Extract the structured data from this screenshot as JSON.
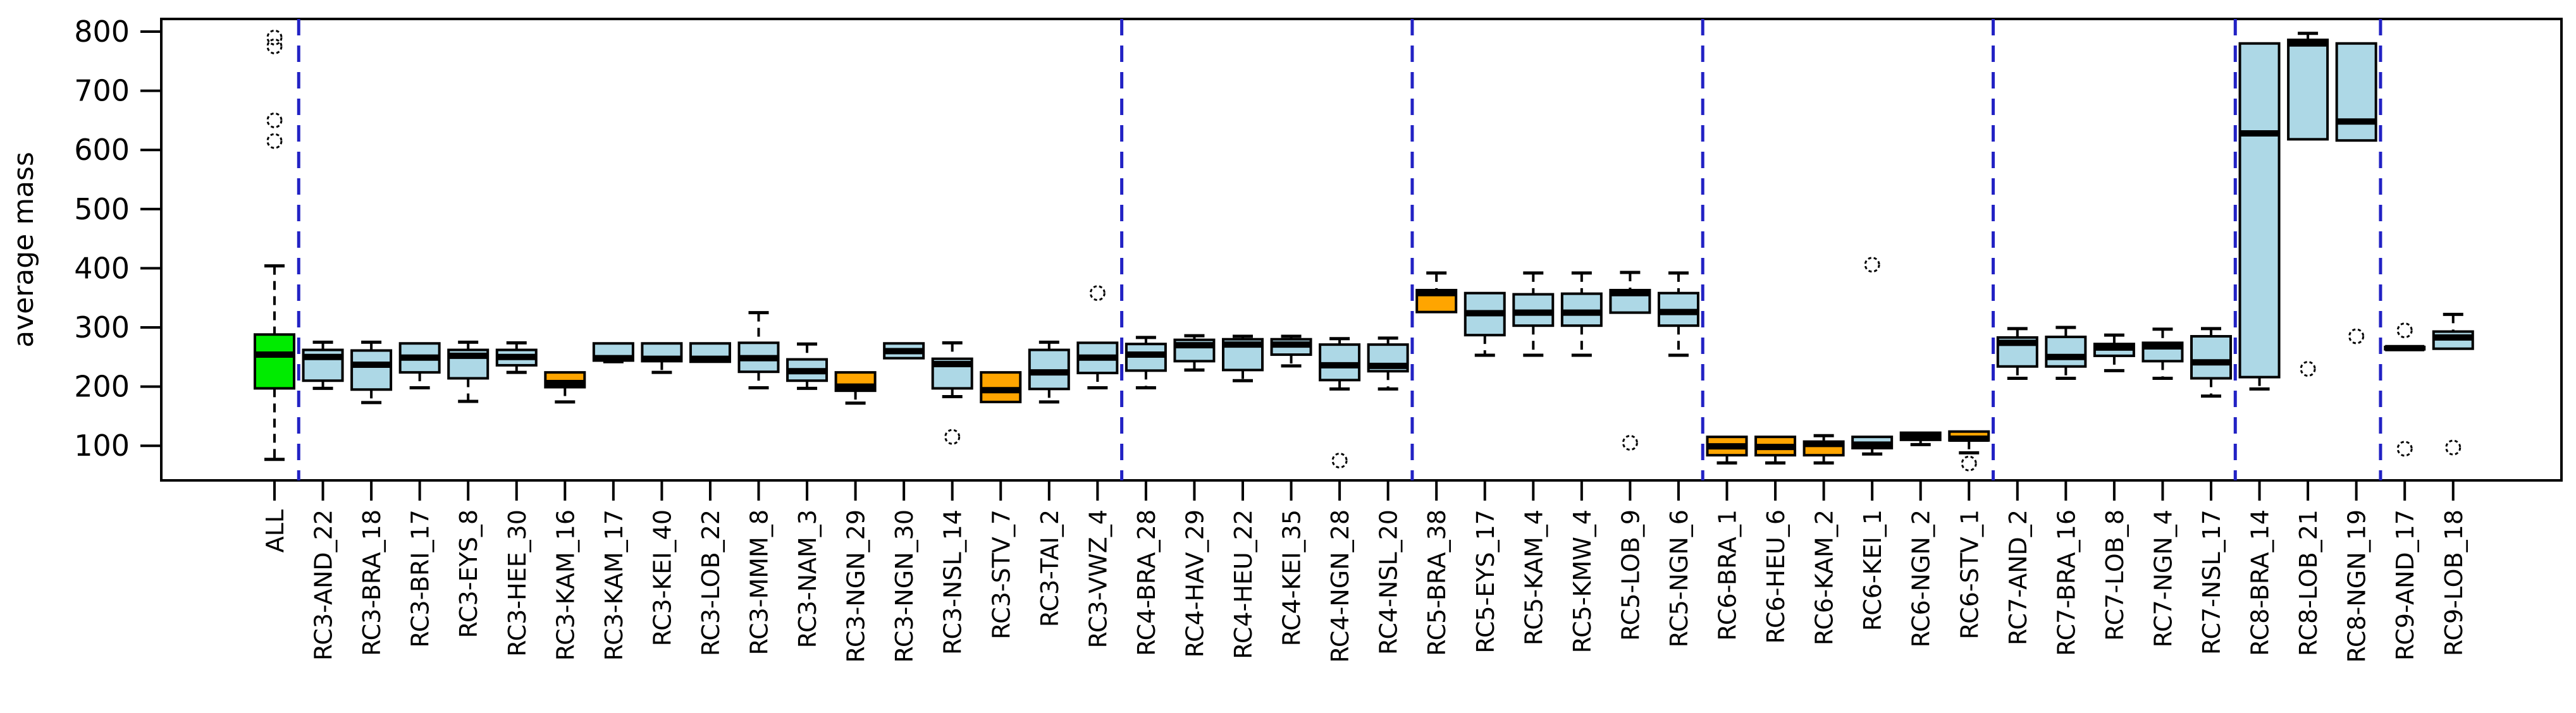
{
  "chart_data": {
    "type": "boxplot",
    "title": "",
    "xlabel": "",
    "ylabel": "average mass",
    "ylim": [
      40,
      825
    ],
    "yticks": [
      100,
      200,
      300,
      400,
      500,
      600,
      700,
      800
    ],
    "grid": false,
    "legend": null,
    "colors": {
      "highlight_green": "#00EB00",
      "default_lightblue": "#ADD8E6",
      "highlight_orange": "#FFA500",
      "separator_blue": "#2222C4",
      "axis_black": "#000000",
      "background": "#FFFFFF"
    },
    "separators_after_labels": [
      "ALL",
      "RC3-VWZ_4",
      "RC4-NSL_20",
      "RC5-NGN_6",
      "RC6-STV_1",
      "RC7-NSL_17",
      "RC8-NGN_19"
    ],
    "boxes": [
      {
        "label": "ALL",
        "color": "green",
        "lo": 77,
        "q1": 197,
        "med": 254,
        "q3": 288,
        "hi": 404,
        "outliers": [
          615,
          650,
          775,
          790
        ]
      },
      {
        "label": "RC3-AND_22",
        "color": "lightblue",
        "lo": 197,
        "q1": 210,
        "med": 250,
        "q3": 262,
        "hi": 275,
        "outliers": []
      },
      {
        "label": "RC3-BRA_18",
        "color": "lightblue",
        "lo": 173,
        "q1": 195,
        "med": 237,
        "q3": 261,
        "hi": 275,
        "outliers": []
      },
      {
        "label": "RC3-BRI_17",
        "color": "lightblue",
        "lo": 198,
        "q1": 224,
        "med": 249,
        "q3": 273,
        "hi": 273,
        "outliers": []
      },
      {
        "label": "RC3-EYS_8",
        "color": "lightblue",
        "lo": 175,
        "q1": 214,
        "med": 252,
        "q3": 262,
        "hi": 275,
        "outliers": []
      },
      {
        "label": "RC3-HEE_30",
        "color": "lightblue",
        "lo": 224,
        "q1": 236,
        "med": 250,
        "q3": 262,
        "hi": 274,
        "outliers": []
      },
      {
        "label": "RC3-KAM_16",
        "color": "orange",
        "lo": 174,
        "q1": 199,
        "med": 206,
        "q3": 224,
        "hi": 224,
        "outliers": []
      },
      {
        "label": "RC3-KAM_17",
        "color": "lightblue",
        "lo": 242,
        "q1": 244,
        "med": 248,
        "q3": 273,
        "hi": 273,
        "outliers": []
      },
      {
        "label": "RC3-KEI_40",
        "color": "lightblue",
        "lo": 224,
        "q1": 243,
        "med": 247,
        "q3": 273,
        "hi": 273,
        "outliers": []
      },
      {
        "label": "RC3-LOB_22",
        "color": "lightblue",
        "lo": 241,
        "q1": 242,
        "med": 247,
        "q3": 273,
        "hi": 273,
        "outliers": []
      },
      {
        "label": "RC3-MMM_8",
        "color": "lightblue",
        "lo": 198,
        "q1": 225,
        "med": 248,
        "q3": 274,
        "hi": 325,
        "outliers": []
      },
      {
        "label": "RC3-NAM_3",
        "color": "lightblue",
        "lo": 197,
        "q1": 210,
        "med": 226,
        "q3": 246,
        "hi": 272,
        "outliers": []
      },
      {
        "label": "RC3-NGN_29",
        "color": "orange",
        "lo": 172,
        "q1": 193,
        "med": 200,
        "q3": 224,
        "hi": 224,
        "outliers": []
      },
      {
        "label": "RC3-NGN_30",
        "color": "lightblue",
        "lo": 247,
        "q1": 248,
        "med": 260,
        "q3": 273,
        "hi": 273,
        "outliers": []
      },
      {
        "label": "RC3-NSL_14",
        "color": "lightblue",
        "lo": 183,
        "q1": 197,
        "med": 238,
        "q3": 247,
        "hi": 274,
        "outliers": [
          115
        ]
      },
      {
        "label": "RC3-STV_7",
        "color": "orange",
        "lo": 173,
        "q1": 174,
        "med": 194,
        "q3": 224,
        "hi": 224,
        "outliers": []
      },
      {
        "label": "RC3-TAI_2",
        "color": "lightblue",
        "lo": 174,
        "q1": 196,
        "med": 224,
        "q3": 262,
        "hi": 275,
        "outliers": []
      },
      {
        "label": "RC3-VWZ_4",
        "color": "lightblue",
        "lo": 198,
        "q1": 223,
        "med": 249,
        "q3": 274,
        "hi": 274,
        "outliers": [
          358
        ]
      },
      {
        "label": "RC4-BRA_28",
        "color": "lightblue",
        "lo": 198,
        "q1": 227,
        "med": 254,
        "q3": 272,
        "hi": 283,
        "outliers": []
      },
      {
        "label": "RC4-HAV_29",
        "color": "lightblue",
        "lo": 228,
        "q1": 243,
        "med": 270,
        "q3": 279,
        "hi": 286,
        "outliers": []
      },
      {
        "label": "RC4-HEU_22",
        "color": "lightblue",
        "lo": 210,
        "q1": 228,
        "med": 271,
        "q3": 280,
        "hi": 285,
        "outliers": []
      },
      {
        "label": "RC4-KEI_35",
        "color": "lightblue",
        "lo": 235,
        "q1": 254,
        "med": 271,
        "q3": 280,
        "hi": 285,
        "outliers": []
      },
      {
        "label": "RC4-NGN_28",
        "color": "lightblue",
        "lo": 196,
        "q1": 211,
        "med": 236,
        "q3": 271,
        "hi": 281,
        "outliers": [
          75
        ]
      },
      {
        "label": "RC4-NSL_20",
        "color": "lightblue",
        "lo": 196,
        "q1": 226,
        "med": 235,
        "q3": 271,
        "hi": 282,
        "outliers": []
      },
      {
        "label": "RC5-BRA_38",
        "color": "orange",
        "lo": 325,
        "q1": 326,
        "med": 358,
        "q3": 363,
        "hi": 392,
        "outliers": []
      },
      {
        "label": "RC5-EYS_17",
        "color": "lightblue",
        "lo": 253,
        "q1": 287,
        "med": 324,
        "q3": 358,
        "hi": 358,
        "outliers": []
      },
      {
        "label": "RC5-KAM_4",
        "color": "lightblue",
        "lo": 253,
        "q1": 303,
        "med": 325,
        "q3": 356,
        "hi": 392,
        "outliers": []
      },
      {
        "label": "RC5-KMW_4",
        "color": "lightblue",
        "lo": 253,
        "q1": 303,
        "med": 325,
        "q3": 357,
        "hi": 392,
        "outliers": []
      },
      {
        "label": "RC5-LOB_9",
        "color": "lightblue",
        "lo": 324,
        "q1": 325,
        "med": 358,
        "q3": 363,
        "hi": 393,
        "outliers": [
          105
        ]
      },
      {
        "label": "RC5-NGN_6",
        "color": "lightblue",
        "lo": 253,
        "q1": 303,
        "med": 326,
        "q3": 358,
        "hi": 392,
        "outliers": []
      },
      {
        "label": "RC6-BRA_1",
        "color": "orange",
        "lo": 71,
        "q1": 84,
        "med": 99,
        "q3": 115,
        "hi": 115,
        "outliers": []
      },
      {
        "label": "RC6-HEU_6",
        "color": "orange",
        "lo": 71,
        "q1": 84,
        "med": 98,
        "q3": 115,
        "hi": 115,
        "outliers": []
      },
      {
        "label": "RC6-KAM_2",
        "color": "orange",
        "lo": 71,
        "q1": 84,
        "med": 103,
        "q3": 107,
        "hi": 117,
        "outliers": []
      },
      {
        "label": "RC6-KEI_1",
        "color": "lightblue",
        "lo": 86,
        "q1": 96,
        "med": 102,
        "q3": 115,
        "hi": 115,
        "outliers": [
          406
        ]
      },
      {
        "label": "RC6-NGN_2",
        "color": "lightblue",
        "lo": 102,
        "q1": 110,
        "med": 116,
        "q3": 122,
        "hi": 123,
        "outliers": []
      },
      {
        "label": "RC6-STV_1",
        "color": "orange",
        "lo": 88,
        "q1": 109,
        "med": 112,
        "q3": 124,
        "hi": 124,
        "outliers": [
          70
        ]
      },
      {
        "label": "RC7-AND_2",
        "color": "lightblue",
        "lo": 214,
        "q1": 234,
        "med": 274,
        "q3": 283,
        "hi": 298,
        "outliers": []
      },
      {
        "label": "RC7-BRA_16",
        "color": "lightblue",
        "lo": 214,
        "q1": 234,
        "med": 250,
        "q3": 284,
        "hi": 300,
        "outliers": []
      },
      {
        "label": "RC7-LOB_8",
        "color": "lightblue",
        "lo": 227,
        "q1": 252,
        "med": 266,
        "q3": 272,
        "hi": 287,
        "outliers": []
      },
      {
        "label": "RC7-NGN_4",
        "color": "lightblue",
        "lo": 214,
        "q1": 243,
        "med": 268,
        "q3": 274,
        "hi": 297,
        "outliers": []
      },
      {
        "label": "RC7-NSL_17",
        "color": "lightblue",
        "lo": 184,
        "q1": 214,
        "med": 241,
        "q3": 285,
        "hi": 298,
        "outliers": []
      },
      {
        "label": "RC8-BRA_14",
        "color": "lightblue",
        "lo": 196,
        "q1": 216,
        "med": 628,
        "q3": 780,
        "hi": 780,
        "outliers": []
      },
      {
        "label": "RC8-LOB_21",
        "color": "lightblue",
        "lo": 617,
        "q1": 618,
        "med": 780,
        "q3": 786,
        "hi": 797,
        "outliers": [
          230
        ]
      },
      {
        "label": "RC8-NGN_19",
        "color": "lightblue",
        "lo": 615,
        "q1": 616,
        "med": 648,
        "q3": 780,
        "hi": 780,
        "outliers": [
          285
        ]
      },
      {
        "label": "RC9-AND_17",
        "color": "lightblue",
        "lo": 262,
        "q1": 263,
        "med": 265,
        "q3": 267,
        "hi": 268,
        "outliers": [
          95,
          295
        ]
      },
      {
        "label": "RC9-LOB_18",
        "color": "lightblue",
        "lo": 263,
        "q1": 264,
        "med": 283,
        "q3": 293,
        "hi": 322,
        "outliers": [
          97
        ]
      }
    ]
  }
}
